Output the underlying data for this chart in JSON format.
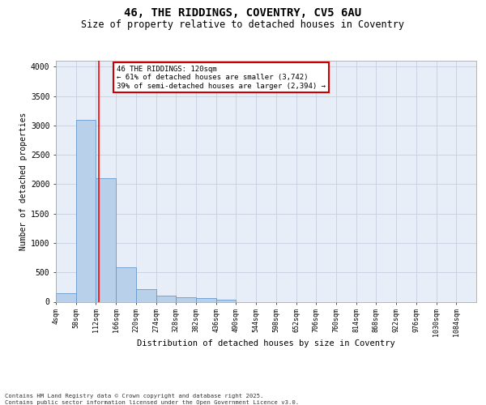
{
  "title": "46, THE RIDDINGS, COVENTRY, CV5 6AU",
  "subtitle": "Size of property relative to detached houses in Coventry",
  "xlabel": "Distribution of detached houses by size in Coventry",
  "ylabel": "Number of detached properties",
  "bin_labels": [
    "4sqm",
    "58sqm",
    "112sqm",
    "166sqm",
    "220sqm",
    "274sqm",
    "328sqm",
    "382sqm",
    "436sqm",
    "490sqm",
    "544sqm",
    "598sqm",
    "652sqm",
    "706sqm",
    "760sqm",
    "814sqm",
    "868sqm",
    "922sqm",
    "976sqm",
    "1030sqm",
    "1084sqm"
  ],
  "bin_edges": [
    4,
    58,
    112,
    166,
    220,
    274,
    328,
    382,
    436,
    490,
    544,
    598,
    652,
    706,
    760,
    814,
    868,
    922,
    976,
    1030,
    1084
  ],
  "bar_heights": [
    150,
    3100,
    2100,
    580,
    220,
    100,
    80,
    60,
    30,
    0,
    0,
    0,
    0,
    0,
    0,
    0,
    0,
    0,
    0,
    0
  ],
  "bar_color": "#b8d0ea",
  "bar_edge_color": "#6699cc",
  "red_line_x": 120,
  "ylim": [
    0,
    4100
  ],
  "yticks": [
    0,
    500,
    1000,
    1500,
    2000,
    2500,
    3000,
    3500,
    4000
  ],
  "bg_color": "#e8eef8",
  "grid_color": "#c5cfe0",
  "annotation_text": "46 THE RIDDINGS: 120sqm\n← 61% of detached houses are smaller (3,742)\n39% of semi-detached houses are larger (2,394) →",
  "annotation_box_color": "#ffffff",
  "annotation_box_edge": "#cc0000",
  "footnote": "Contains HM Land Registry data © Crown copyright and database right 2025.\nContains public sector information licensed under the Open Government Licence v3.0."
}
